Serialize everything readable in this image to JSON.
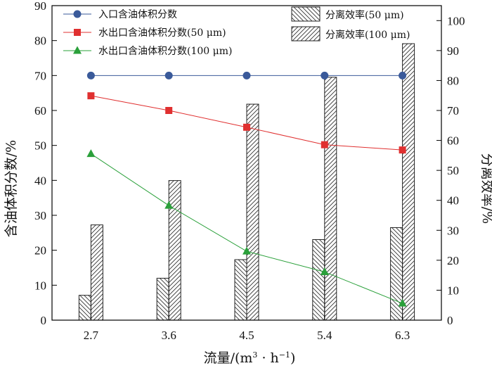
{
  "chart_data": {
    "type": "bar+line",
    "categories": [
      "2.7",
      "3.6",
      "4.5",
      "5.4",
      "6.3"
    ],
    "xlabel": "流量/(m³·h⁻¹)",
    "xlabel_parts": {
      "main": "流量/(m",
      "sup1": "3",
      "mid": " · h",
      "sup2": "−1",
      "end": ")"
    },
    "ylabel_left": "含油体积分数/%",
    "ylabel_right": "分离效率/%",
    "ylim_left": [
      0,
      90
    ],
    "yticks_left": [
      0,
      10,
      20,
      30,
      40,
      50,
      60,
      70,
      80,
      90
    ],
    "ylim_right": [
      0,
      105
    ],
    "yticks_right": [
      0,
      10,
      20,
      30,
      40,
      50,
      60,
      70,
      80,
      90,
      100
    ],
    "line_series": [
      {
        "name": "入口含油体积分数",
        "axis": "left",
        "marker": "circle",
        "color": "#3a5a9a",
        "values": [
          70,
          70,
          70,
          70,
          70
        ]
      },
      {
        "name": "水出口含油体积分数(50 μm)",
        "axis": "left",
        "marker": "square",
        "color": "#e03030",
        "values": [
          64.2,
          60,
          55.2,
          50.2,
          48.7
        ]
      },
      {
        "name": "水出口含油体积分数(100 μm)",
        "axis": "left",
        "marker": "triangle",
        "color": "#2aa03a",
        "values": [
          47.6,
          32.8,
          19.7,
          13.8,
          4.8
        ]
      }
    ],
    "bar_series": [
      {
        "name": "分离效率(50 μm)",
        "axis": "right",
        "hatch": "backslash",
        "values": [
          8.3,
          14,
          20.2,
          26.9,
          30.9
        ]
      },
      {
        "name": "分离效率(100 μm)",
        "axis": "right",
        "hatch": "slash",
        "values": [
          31.8,
          46.6,
          72.1,
          81.1,
          92.3
        ]
      }
    ]
  }
}
